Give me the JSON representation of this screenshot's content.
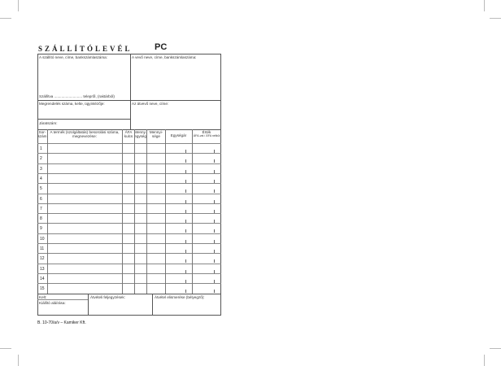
{
  "title": "SZÁLLÍTÓLEVÉL",
  "code": "PC",
  "supplier_label": "A szállító neve, címe, bankszámlaszáma:",
  "buyer_label": "A vevő neve, címe, bankszámlaszáma:",
  "shipping_label": "Szállítva ........................... telepről, (raktárból)",
  "order_label": "Megrendelés száma, kelte, ügyintézője:",
  "receiver_label": "Az átvevő neve, címe:",
  "vehicle_label": "Járatszám:",
  "columns": [
    "Sor-szám",
    "A termék (szolgáltatás) besorolási száma, megnevezése:",
    "ÁFA kulcs",
    "Menny. egység",
    "Mennyi-sége",
    "Egységár",
    "Érték"
  ],
  "value_sub": "ÁFA-val / ÁFA nélkül",
  "rows": [
    "1",
    "2",
    "3",
    "4",
    "5",
    "6",
    "7",
    "8",
    "9",
    "10",
    "11",
    "12",
    "13",
    "14",
    "15"
  ],
  "date_label": "Kelt:",
  "issuer_signature_label": "Kiállító aláírása:",
  "receipt_notes_label": "Átvételi feljegyzések:",
  "receipt_confirm_label": "Átvétel elismerése (bélyegző):",
  "footer": "B. 10-70/a/v  –  Kamiker Kft."
}
